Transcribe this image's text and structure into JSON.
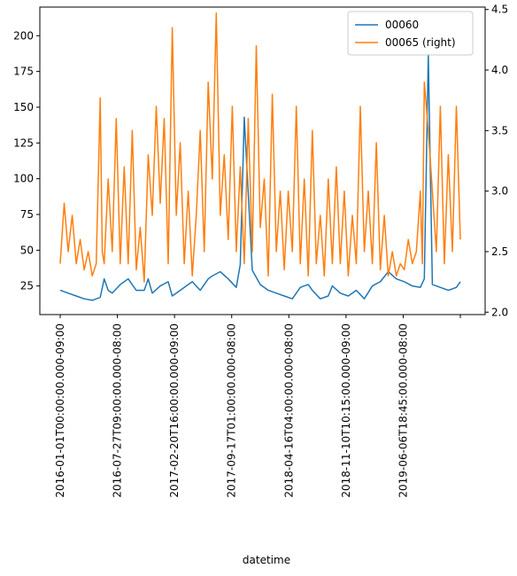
{
  "chart_data": {
    "type": "line",
    "xlabel": "datetime",
    "x_tick_labels": [
      "2016-01-01T00:00:00.000-09:00",
      "2016-07-27T09:00:00.000-08:00",
      "2017-02-20T16:00:00.000-09:00",
      "2017-09-17T01:00:00.000-08:00",
      "2018-04-16T04:00:00.000-08:00",
      "2018-11-10T10:15:00.000-09:00",
      "2019-06-06T18:45:00.000-08:00"
    ],
    "ylim_left": [
      5,
      220
    ],
    "yticks_left": [
      25,
      50,
      75,
      100,
      125,
      150,
      175,
      200
    ],
    "ylim_right": [
      1.98,
      4.52
    ],
    "yticks_right": [
      2.0,
      2.5,
      3.0,
      3.5,
      4.0,
      4.5
    ],
    "legend_position": "top-right",
    "grid": false,
    "series": [
      {
        "name": "00060",
        "axis": "left",
        "color": "#1f77b4",
        "x": [
          0.0,
          0.02,
          0.04,
          0.06,
          0.08,
          0.1,
          0.11,
          0.12,
          0.13,
          0.15,
          0.17,
          0.19,
          0.21,
          0.22,
          0.23,
          0.25,
          0.27,
          0.28,
          0.3,
          0.32,
          0.33,
          0.35,
          0.37,
          0.38,
          0.4,
          0.42,
          0.44,
          0.45,
          0.46,
          0.48,
          0.5,
          0.52,
          0.54,
          0.56,
          0.58,
          0.6,
          0.62,
          0.63,
          0.65,
          0.67,
          0.68,
          0.7,
          0.72,
          0.74,
          0.76,
          0.78,
          0.8,
          0.82,
          0.84,
          0.86,
          0.88,
          0.9,
          0.91,
          0.92,
          0.93,
          0.95,
          0.97,
          0.99,
          1.0
        ],
        "y": [
          22,
          20,
          18,
          16,
          15,
          17,
          30,
          22,
          20,
          26,
          30,
          22,
          22,
          30,
          20,
          25,
          28,
          18,
          22,
          26,
          28,
          22,
          30,
          32,
          35,
          30,
          24,
          40,
          143,
          36,
          26,
          22,
          20,
          18,
          16,
          24,
          26,
          22,
          16,
          18,
          25,
          20,
          18,
          22,
          16,
          25,
          28,
          35,
          30,
          28,
          25,
          24,
          30,
          187,
          26,
          24,
          22,
          24,
          28
        ]
      },
      {
        "name": "00065 (right)",
        "axis": "right",
        "color": "#ff7f0e",
        "x": [
          0.0,
          0.01,
          0.02,
          0.03,
          0.04,
          0.05,
          0.06,
          0.07,
          0.08,
          0.09,
          0.1,
          0.105,
          0.11,
          0.12,
          0.13,
          0.14,
          0.15,
          0.16,
          0.17,
          0.18,
          0.19,
          0.2,
          0.21,
          0.22,
          0.23,
          0.24,
          0.25,
          0.26,
          0.27,
          0.28,
          0.29,
          0.3,
          0.31,
          0.32,
          0.33,
          0.34,
          0.35,
          0.36,
          0.37,
          0.38,
          0.39,
          0.4,
          0.41,
          0.42,
          0.43,
          0.44,
          0.45,
          0.46,
          0.47,
          0.48,
          0.49,
          0.5,
          0.51,
          0.52,
          0.53,
          0.54,
          0.55,
          0.56,
          0.57,
          0.58,
          0.59,
          0.6,
          0.61,
          0.62,
          0.63,
          0.64,
          0.65,
          0.66,
          0.67,
          0.68,
          0.69,
          0.7,
          0.71,
          0.72,
          0.73,
          0.74,
          0.75,
          0.76,
          0.77,
          0.78,
          0.79,
          0.8,
          0.81,
          0.82,
          0.83,
          0.84,
          0.85,
          0.86,
          0.87,
          0.88,
          0.89,
          0.9,
          0.905,
          0.91,
          0.92,
          0.93,
          0.94,
          0.95,
          0.96,
          0.97,
          0.98,
          0.99,
          1.0
        ],
        "y": [
          2.4,
          2.9,
          2.5,
          2.8,
          2.4,
          2.6,
          2.35,
          2.5,
          2.3,
          2.4,
          3.77,
          2.5,
          2.4,
          3.1,
          2.5,
          3.6,
          2.4,
          3.2,
          2.4,
          3.5,
          2.35,
          2.7,
          2.25,
          3.3,
          2.8,
          3.7,
          2.9,
          3.6,
          2.4,
          4.35,
          2.8,
          3.4,
          2.4,
          3.0,
          2.3,
          2.8,
          3.5,
          2.5,
          3.9,
          3.1,
          4.47,
          2.8,
          3.3,
          2.6,
          3.7,
          2.5,
          3.2,
          2.4,
          3.6,
          2.5,
          4.2,
          2.7,
          3.1,
          2.3,
          3.8,
          2.5,
          3.0,
          2.35,
          3.0,
          2.5,
          3.7,
          2.4,
          3.1,
          2.3,
          3.5,
          2.4,
          2.8,
          2.3,
          3.1,
          2.4,
          3.2,
          2.4,
          3.0,
          2.3,
          2.8,
          2.4,
          3.7,
          2.5,
          3.0,
          2.4,
          3.4,
          2.35,
          2.8,
          2.3,
          2.5,
          2.3,
          2.4,
          2.35,
          2.6,
          2.4,
          2.5,
          3.0,
          2.4,
          3.9,
          3.5,
          3.0,
          2.5,
          3.7,
          2.4,
          3.3,
          2.5,
          3.7,
          2.6
        ]
      }
    ]
  }
}
